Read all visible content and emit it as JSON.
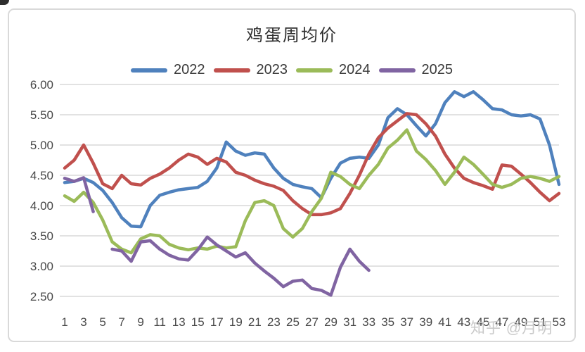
{
  "chart_data": {
    "type": "line",
    "title": "鸡蛋周均价",
    "xlabel": "",
    "ylabel": "",
    "ylim": [
      2.5,
      6.0
    ],
    "grid": true,
    "legend_position": "top",
    "y_tick_labels": [
      "6.00",
      "5.50",
      "5.00",
      "4.50",
      "4.00",
      "3.50",
      "3.00",
      "2.50"
    ],
    "x_tick_labels": [
      "1",
      "3",
      "5",
      "7",
      "9",
      "11",
      "13",
      "15",
      "17",
      "19",
      "21",
      "23",
      "25",
      "27",
      "29",
      "31",
      "33",
      "35",
      "37",
      "39",
      "41",
      "43",
      "45",
      "47",
      "49",
      "51",
      "53"
    ],
    "series": [
      {
        "name": "2022",
        "color": "#4F81BD",
        "values": [
          4.38,
          4.4,
          4.45,
          4.38,
          4.25,
          4.05,
          3.8,
          3.66,
          3.65,
          4.0,
          4.17,
          4.22,
          4.26,
          4.28,
          4.3,
          4.4,
          4.62,
          5.05,
          4.9,
          4.83,
          4.87,
          4.85,
          4.62,
          4.45,
          4.35,
          4.31,
          4.28,
          4.13,
          4.45,
          4.7,
          4.78,
          4.8,
          4.78,
          5.0,
          5.45,
          5.6,
          5.5,
          5.32,
          5.15,
          5.35,
          5.7,
          5.88,
          5.8,
          5.88,
          5.75,
          5.6,
          5.58,
          5.5,
          5.48,
          5.5,
          5.43,
          5.0,
          4.35
        ]
      },
      {
        "name": "2023",
        "color": "#C0504D",
        "values": [
          4.62,
          4.75,
          5.0,
          4.7,
          4.36,
          4.28,
          4.5,
          4.36,
          4.34,
          4.45,
          4.52,
          4.62,
          4.75,
          4.85,
          4.8,
          4.68,
          4.78,
          4.72,
          4.55,
          4.5,
          4.42,
          4.36,
          4.32,
          4.25,
          4.08,
          3.95,
          3.85,
          3.85,
          3.88,
          3.95,
          4.2,
          4.5,
          4.85,
          5.12,
          5.28,
          5.4,
          5.52,
          5.5,
          5.35,
          5.15,
          4.85,
          4.62,
          4.45,
          4.38,
          4.33,
          4.27,
          4.67,
          4.65,
          4.52,
          4.38,
          4.22,
          4.08,
          4.2
        ]
      },
      {
        "name": "2024",
        "color": "#9BBB59",
        "values": [
          4.16,
          4.07,
          4.22,
          4.05,
          3.76,
          3.4,
          3.28,
          3.22,
          3.45,
          3.52,
          3.5,
          3.36,
          3.3,
          3.27,
          3.3,
          3.28,
          3.33,
          3.3,
          3.32,
          3.75,
          4.05,
          4.08,
          4.0,
          3.62,
          3.48,
          3.62,
          3.9,
          4.12,
          4.55,
          4.48,
          4.35,
          4.28,
          4.5,
          4.68,
          4.95,
          5.08,
          5.25,
          4.9,
          4.76,
          4.58,
          4.35,
          4.55,
          4.8,
          4.68,
          4.52,
          4.35,
          4.3,
          4.35,
          4.45,
          4.48,
          4.45,
          4.4,
          4.48
        ]
      },
      {
        "name": "2025",
        "color": "#8064A2",
        "values": [
          4.45,
          4.4,
          4.46,
          3.9,
          null,
          3.28,
          3.25,
          3.08,
          3.4,
          3.42,
          3.28,
          3.18,
          3.12,
          3.1,
          3.27,
          3.48,
          3.35,
          3.25,
          3.15,
          3.22,
          3.05,
          2.92,
          2.8,
          2.66,
          2.75,
          2.77,
          2.63,
          2.6,
          2.52,
          2.98,
          3.28,
          3.08,
          2.93
        ]
      }
    ]
  },
  "watermark": "知乎 @月明",
  "colors": {
    "gridline": "#D9D9D9",
    "axis_text": "#484848",
    "title_text": "#2f2f2f",
    "watermark": "#c9c9c9",
    "card_border": "#D9D9D9"
  }
}
